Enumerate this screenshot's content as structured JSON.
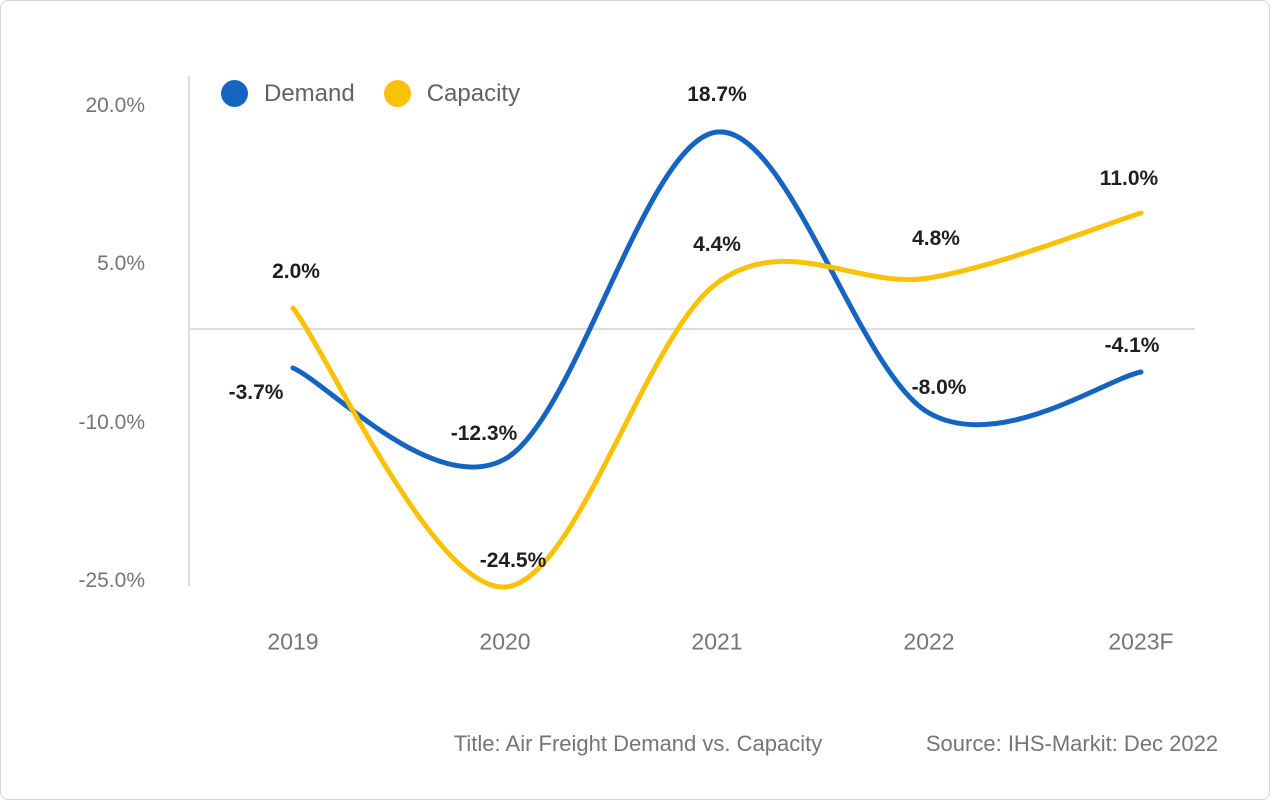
{
  "chart_data": {
    "type": "line",
    "title": "Air Freight Demand vs. Capacity",
    "categories": [
      "2019",
      "2020",
      "2021",
      "2022",
      "2023F"
    ],
    "series": [
      {
        "name": "Demand",
        "color": "#1565C0",
        "values": [
          -3.7,
          -12.3,
          18.7,
          -8.0,
          -4.1
        ],
        "point_labels": [
          "-3.7%",
          "-12.3%",
          "18.7%",
          "-8.0%",
          "-4.1%"
        ]
      },
      {
        "name": "Capacity",
        "color": "#FBC107",
        "values": [
          2.0,
          -24.5,
          4.4,
          4.8,
          11.0
        ],
        "point_labels": [
          "2.0%",
          "-24.5%",
          "4.4%",
          "4.8%",
          "11.0%"
        ]
      }
    ],
    "y_ticks": [
      {
        "label": "20.0%",
        "value": 20
      },
      {
        "label": "5.0%",
        "value": 5
      },
      {
        "label": "-10.0%",
        "value": -10
      },
      {
        "label": "-25.0%",
        "value": -25
      }
    ],
    "ylim": [
      -27,
      22
    ],
    "xlabel": "",
    "ylabel": "",
    "grid": "zero-baseline-only",
    "legend_position": "top-left",
    "line_style": "smooth-spline",
    "axis_color": "#DCDCDC",
    "baseline_value": 0
  },
  "legend": {
    "demand_label": "Demand",
    "capacity_label": "Capacity"
  },
  "footer": {
    "title_caption": "Title: Air Freight Demand vs. Capacity",
    "source_caption": "Source: IHS-Markit: Dec 2022"
  }
}
